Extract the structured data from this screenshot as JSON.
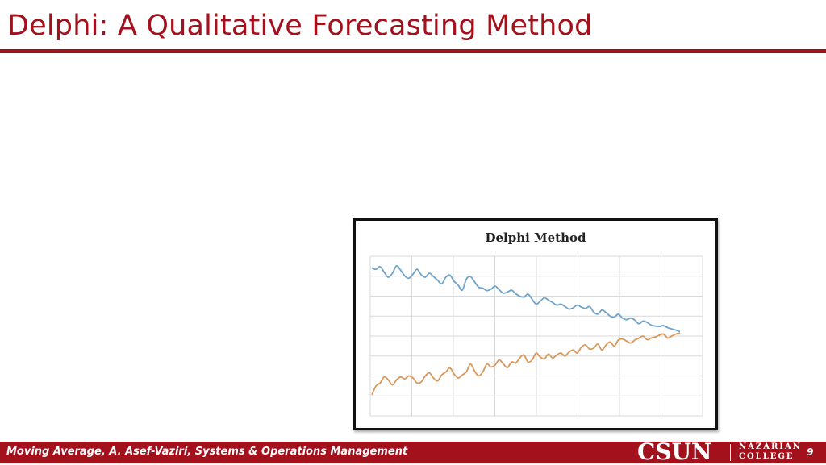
{
  "slide": {
    "title": "Delphi:  A Qualitative Forecasting Method",
    "footer": "Moving Average, A. Asef-Vaziri, Systems & Operations Management",
    "page_number": "9",
    "logo": {
      "csun": "CSUN",
      "college_line1": "NAZARIAN",
      "college_line2": "COLLEGE"
    }
  },
  "colors": {
    "accent": "#a3111c",
    "series_upper": "#6fa3c9",
    "series_lower": "#d9975a",
    "grid": "#d9d9d9"
  },
  "chart_data": {
    "type": "line",
    "title": "Delphi Method",
    "xlabel": "",
    "ylabel": "",
    "grid": true,
    "legend": "none",
    "x_range": [
      0,
      75
    ],
    "y_range": [
      0,
      8
    ],
    "series": [
      {
        "values": [
          7.42,
          7.35,
          7.48,
          7.2,
          6.95,
          7.15,
          7.52,
          7.3,
          7.02,
          6.9,
          7.1,
          7.35,
          7.08,
          6.95,
          7.15,
          6.98,
          6.8,
          6.62,
          6.95,
          7.05,
          6.75,
          6.55,
          6.3,
          6.85,
          6.98,
          6.72,
          6.45,
          6.4,
          6.28,
          6.35,
          6.5,
          6.32,
          6.15,
          6.2,
          6.3,
          6.12,
          6.0,
          5.95,
          6.1,
          5.85,
          5.6,
          5.75,
          5.92,
          5.8,
          5.68,
          5.55,
          5.6,
          5.48,
          5.35,
          5.42,
          5.55,
          5.45,
          5.38,
          5.48,
          5.2,
          5.1,
          5.3,
          5.18,
          5.0,
          4.95,
          5.1,
          4.9,
          4.82,
          4.9,
          4.8,
          4.62,
          4.75,
          4.68,
          4.55,
          4.5,
          4.48,
          4.52,
          4.42,
          4.35,
          4.3,
          4.22
        ]
      },
      {
        "values": [
          1.05,
          1.5,
          1.65,
          1.95,
          1.8,
          1.55,
          1.8,
          1.95,
          1.85,
          2.0,
          1.9,
          1.65,
          1.7,
          2.0,
          2.15,
          1.9,
          1.75,
          2.05,
          2.2,
          2.4,
          2.1,
          1.9,
          2.05,
          2.2,
          2.6,
          2.25,
          2.0,
          2.2,
          2.6,
          2.45,
          2.55,
          2.8,
          2.6,
          2.42,
          2.7,
          2.65,
          2.9,
          3.05,
          2.7,
          2.8,
          3.15,
          2.95,
          2.85,
          3.1,
          2.9,
          3.05,
          3.15,
          3.0,
          3.2,
          3.3,
          3.15,
          3.45,
          3.55,
          3.35,
          3.4,
          3.6,
          3.3,
          3.55,
          3.7,
          3.5,
          3.8,
          3.85,
          3.75,
          3.65,
          3.8,
          3.9,
          4.0,
          3.82,
          3.9,
          3.95,
          4.05,
          4.1,
          3.9,
          4.0,
          4.1,
          4.15
        ]
      }
    ]
  }
}
